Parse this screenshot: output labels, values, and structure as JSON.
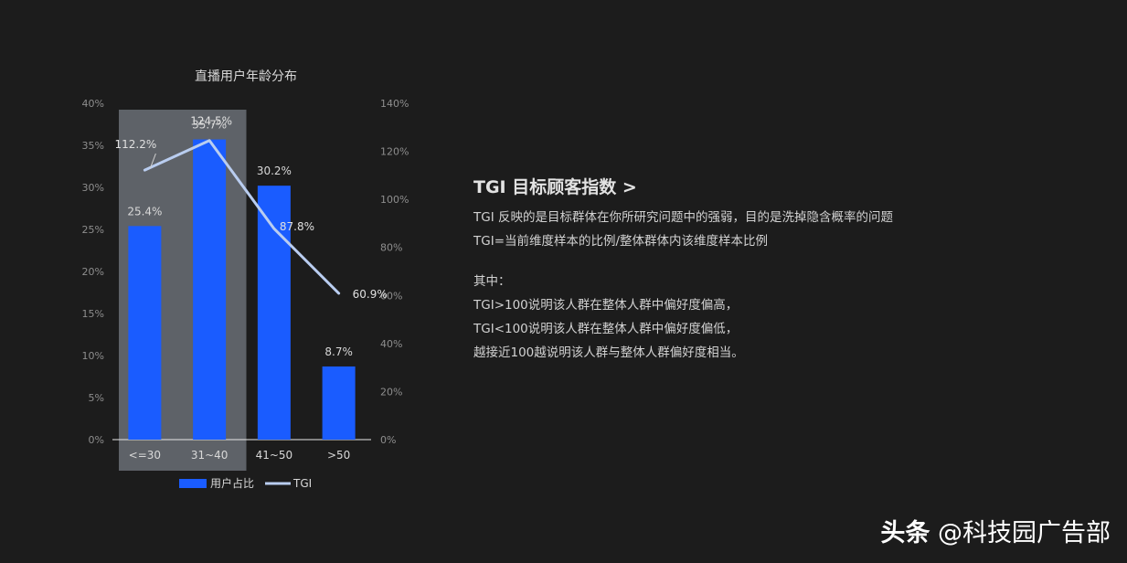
{
  "chart_data": {
    "type": "bar",
    "title": "直播用户年龄分布",
    "categories": [
      "<=30",
      "31~40",
      "41~50",
      ">50"
    ],
    "series": [
      {
        "name": "用户占比",
        "type": "bar",
        "axis": "left",
        "color": "#1a5cff",
        "values": [
          25.4,
          35.7,
          30.2,
          8.7
        ],
        "labels": [
          "25.4%",
          "35.7%",
          "30.2%",
          "8.7%"
        ]
      },
      {
        "name": "TGI",
        "type": "line",
        "axis": "right",
        "color": "#b9cdf0",
        "values": [
          112.2,
          124.5,
          87.8,
          60.9
        ],
        "labels": [
          "112.2%",
          "124.5%",
          "87.8%",
          "60.9%"
        ]
      }
    ],
    "y_left": {
      "min": 0,
      "max": 40,
      "ticks": [
        "0%",
        "5%",
        "10%",
        "15%",
        "20%",
        "25%",
        "30%",
        "35%",
        "40%"
      ]
    },
    "y_right": {
      "min": 0,
      "max": 140,
      "ticks": [
        "0%",
        "20%",
        "40%",
        "60%",
        "80%",
        "100%",
        "120%",
        "140%"
      ]
    },
    "highlight_categories": [
      "<=30",
      "31~40"
    ],
    "grid": false,
    "legend_position": "bottom"
  },
  "info": {
    "heading": "TGI  目标顾客指数  >",
    "lines": [
      "TGI 反映的是目标群体在你所研究问题中的强弱，目的是洗掉隐含概率的问题",
      "TGI=当前维度样本的比例/整体群体内该维度样本比例"
    ],
    "lines2": [
      "其中：",
      "TGI>100说明该人群在整体人群中偏好度偏高，",
      "TGI<100说明该人群在整体人群中偏好度偏低，",
      "越接近100越说明该人群与整体人群偏好度相当。"
    ]
  },
  "watermark": {
    "brand": "头条",
    "handle": "@科技园广告部"
  },
  "colors": {
    "background": "#1c1c1c",
    "highlight_box": "#5e6268",
    "bar": "#1a5cff",
    "line": "#b9cdf0",
    "text": "#cfcfcf"
  }
}
